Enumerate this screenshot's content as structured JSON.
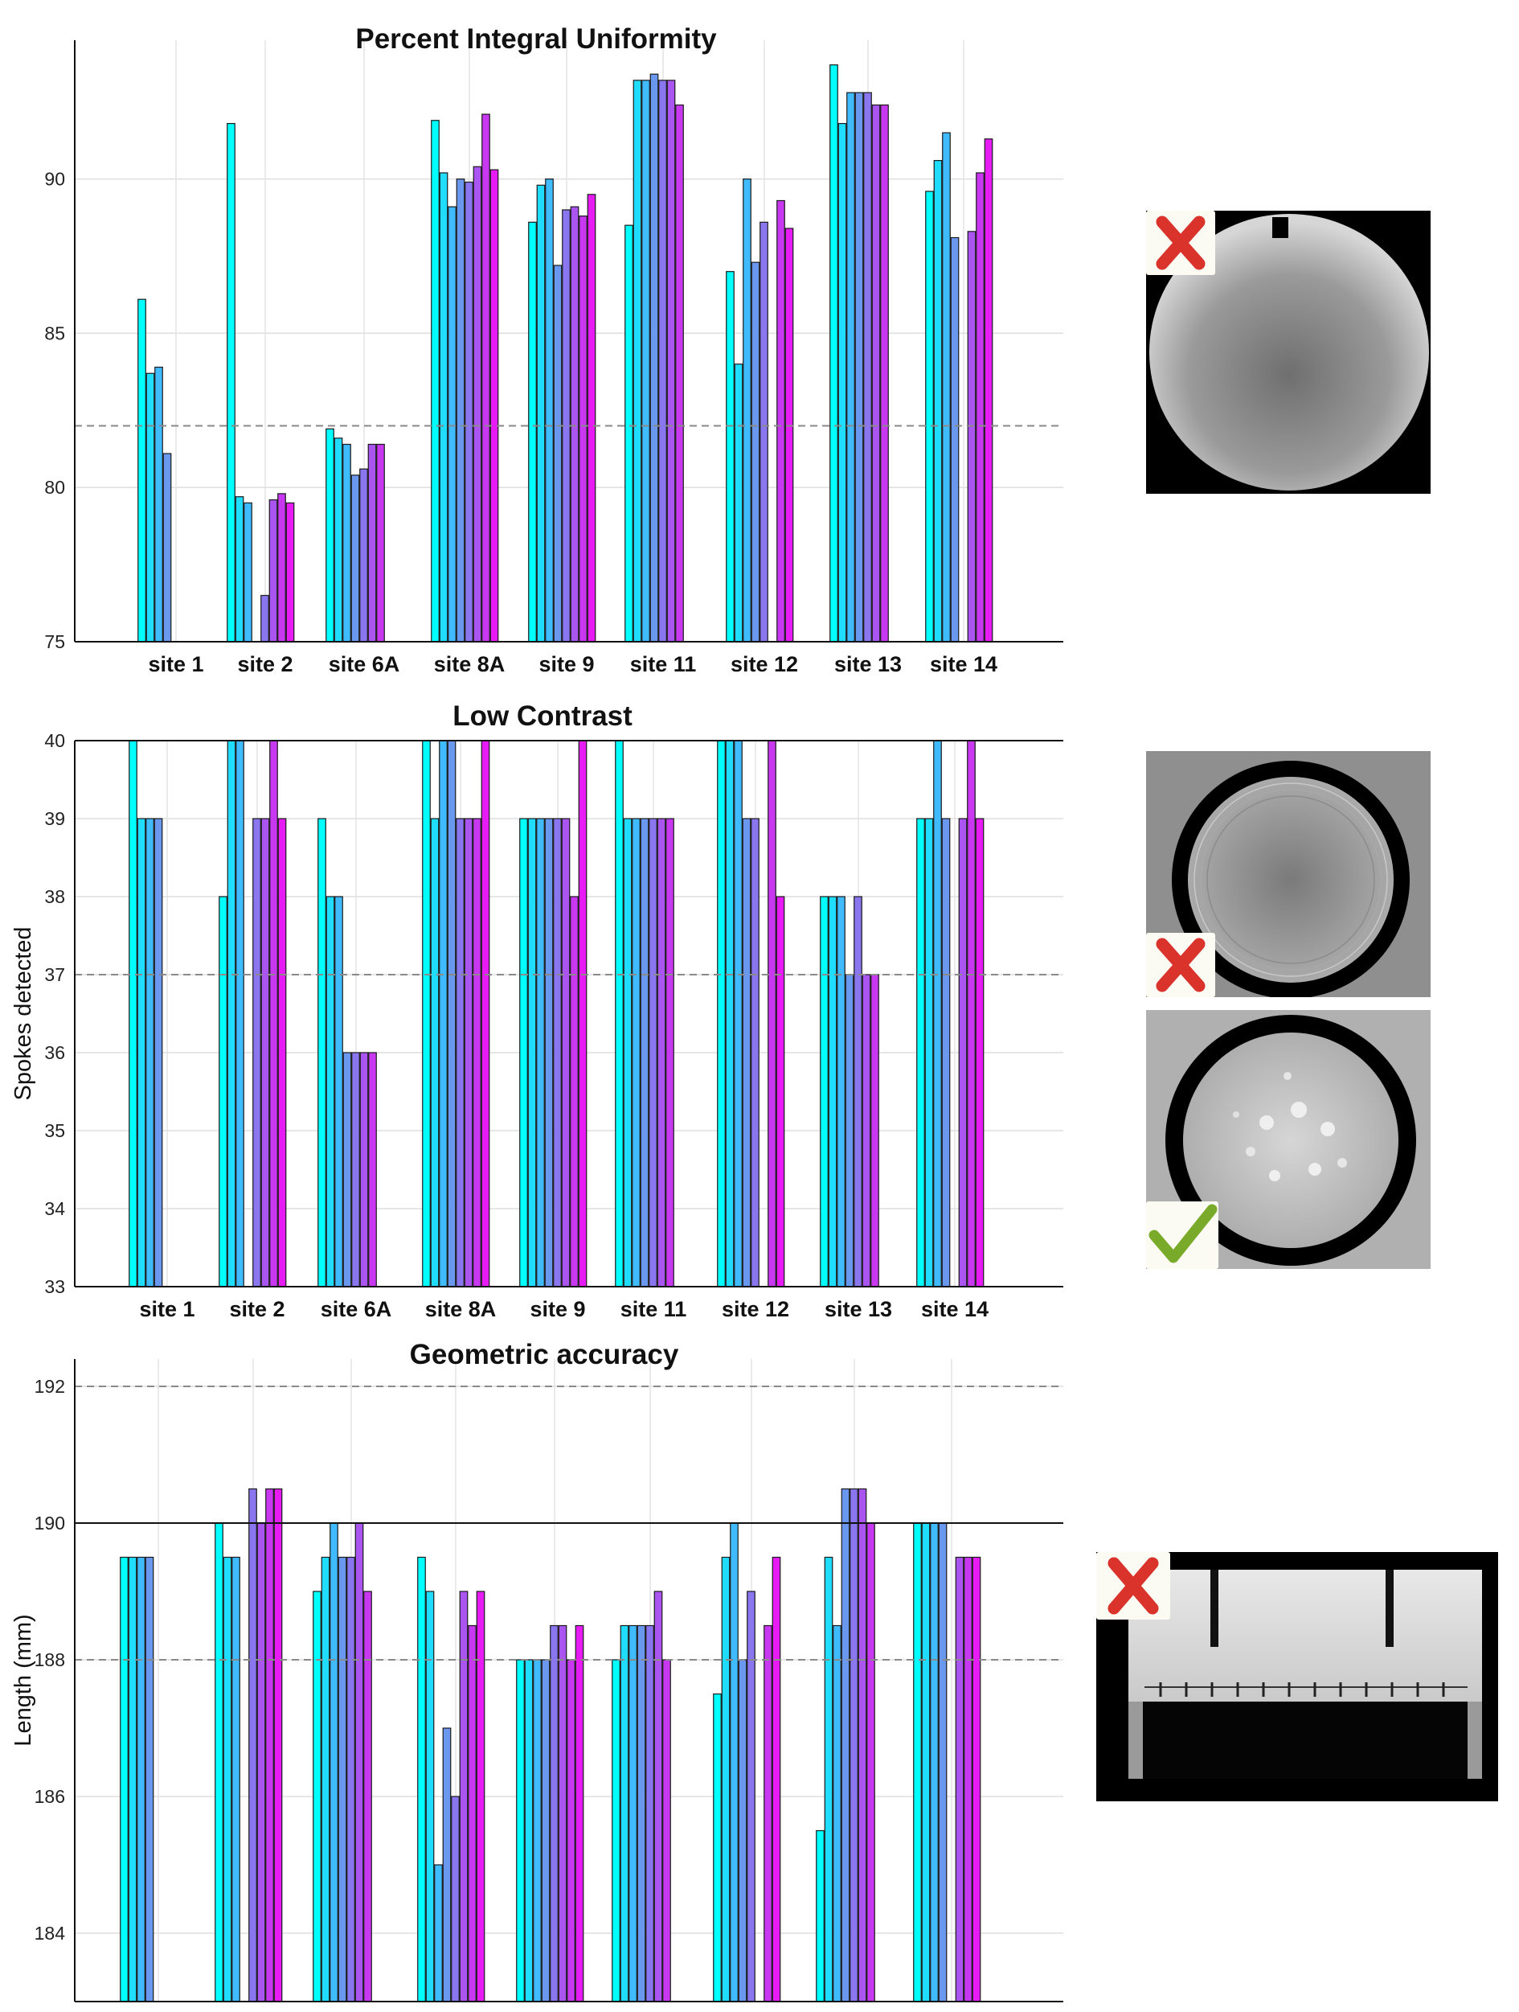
{
  "sites": [
    "site 1",
    "site 2",
    "site 6A",
    "site 8A",
    "site 9",
    "site 11",
    "site 12",
    "site 13",
    "site 14"
  ],
  "palette": [
    "#00ffff",
    "#20ddff",
    "#40bbff",
    "#6a98ef",
    "#8a76ee",
    "#aa55ef",
    "#c838f0",
    "#e71cf5",
    "#ff00ff"
  ],
  "chart_data": [
    {
      "type": "bar",
      "title": "Percent Integral Uniformity",
      "ylabel": "",
      "ylim": [
        75,
        94.5
      ],
      "yticks": [
        75,
        80,
        85,
        90
      ],
      "reference_lines": [
        {
          "value": 82,
          "style": "dashed"
        }
      ],
      "categories": [
        "site 1",
        "site 2",
        "site 6A",
        "site 8A",
        "site 9",
        "site 11",
        "site 12",
        "site 13",
        "site 14"
      ],
      "values": [
        [
          86.1,
          83.7,
          83.9,
          81.1,
          null,
          null,
          null,
          null,
          null
        ],
        [
          91.8,
          79.7,
          79.5,
          null,
          76.5,
          79.6,
          79.8,
          79.5,
          null
        ],
        [
          81.9,
          81.6,
          81.4,
          80.4,
          80.6,
          81.4,
          81.4,
          null,
          null
        ],
        [
          91.9,
          90.2,
          89.1,
          90.0,
          89.9,
          90.4,
          92.1,
          90.3,
          null
        ],
        [
          88.6,
          89.8,
          90.0,
          87.2,
          89.0,
          89.1,
          88.8,
          89.5,
          null
        ],
        [
          88.5,
          93.2,
          93.2,
          93.4,
          93.2,
          93.2,
          92.4,
          null,
          null
        ],
        [
          87.0,
          84.0,
          90.0,
          87.3,
          88.6,
          null,
          89.3,
          88.4,
          null
        ],
        [
          93.7,
          91.8,
          92.8,
          92.8,
          92.8,
          92.4,
          92.4,
          null,
          null
        ],
        [
          89.6,
          90.6,
          91.5,
          88.1,
          null,
          88.3,
          90.2,
          91.3,
          null
        ]
      ],
      "grid": "on"
    },
    {
      "type": "bar",
      "title": "Low Contrast",
      "ylabel": "Spokes detected",
      "ylim": [
        33,
        40
      ],
      "yticks": [
        33,
        34,
        35,
        36,
        37,
        38,
        39,
        40
      ],
      "reference_lines": [
        {
          "value": 37,
          "style": "dashed"
        },
        {
          "value": 40,
          "style": "solid"
        }
      ],
      "categories": [
        "site 1",
        "site 2",
        "site 6A",
        "site 8A",
        "site 9",
        "site 11",
        "site 12",
        "site 13",
        "site 14"
      ],
      "values": [
        [
          40,
          39,
          39,
          39,
          null,
          null,
          null,
          null,
          null
        ],
        [
          38,
          40,
          40,
          null,
          39,
          39,
          40,
          39,
          null
        ],
        [
          39,
          38,
          38,
          36,
          36,
          36,
          36,
          null,
          null
        ],
        [
          40,
          39,
          40,
          40,
          39,
          39,
          39,
          40,
          null
        ],
        [
          39,
          39,
          39,
          39,
          39,
          39,
          38,
          40,
          null
        ],
        [
          40,
          39,
          39,
          39,
          39,
          39,
          39,
          null,
          null
        ],
        [
          40,
          40,
          40,
          39,
          39,
          null,
          40,
          38,
          null
        ],
        [
          38,
          38,
          38,
          37,
          38,
          37,
          37,
          null,
          null
        ],
        [
          39,
          39,
          40,
          39,
          null,
          39,
          40,
          39,
          null
        ]
      ],
      "grid": "on"
    },
    {
      "type": "bar",
      "title": "Geometric accuracy",
      "ylabel": "Length (mm)",
      "ylim": [
        183,
        192.4
      ],
      "yticks": [
        184,
        186,
        188,
        190,
        192
      ],
      "reference_lines": [
        {
          "value": 192,
          "style": "dashed"
        },
        {
          "value": 190,
          "style": "solid"
        },
        {
          "value": 188,
          "style": "dashed"
        }
      ],
      "categories": [
        "site 1",
        "site 2",
        "site 6A",
        "site 8A",
        "site 9",
        "site 11",
        "site 12",
        "site 13",
        "site 14"
      ],
      "values": [
        [
          189.5,
          189.5,
          189.5,
          189.5,
          null,
          null,
          null,
          null,
          null
        ],
        [
          190.0,
          189.5,
          189.5,
          null,
          190.5,
          190.0,
          190.5,
          190.5,
          null
        ],
        [
          189.0,
          189.5,
          190.0,
          189.5,
          189.5,
          190.0,
          189.0,
          null,
          null
        ],
        [
          189.5,
          189.0,
          185.0,
          187.0,
          186.0,
          189.0,
          188.5,
          189.0,
          null
        ],
        [
          188.0,
          188.0,
          188.0,
          188.0,
          188.5,
          188.5,
          188.0,
          188.5,
          null
        ],
        [
          188.0,
          188.5,
          188.5,
          188.5,
          188.5,
          189.0,
          188.0,
          null,
          null
        ],
        [
          187.5,
          189.5,
          190.0,
          188.0,
          189.0,
          null,
          188.5,
          189.5,
          null
        ],
        [
          185.5,
          189.5,
          188.5,
          190.5,
          190.5,
          190.5,
          190.0,
          null,
          null
        ],
        [
          190.0,
          190.0,
          190.0,
          190.0,
          null,
          189.5,
          189.5,
          189.5,
          null
        ]
      ],
      "grid": "on"
    }
  ],
  "thumbnails": [
    {
      "depicts": "uniformity-phantom",
      "status": "fail-icon"
    },
    {
      "depicts": "low-contrast-phantom-ringing",
      "status": "fail-icon"
    },
    {
      "depicts": "low-contrast-phantom-good",
      "status": "pass-icon"
    },
    {
      "depicts": "geometric-phantom-grid",
      "status": "fail-icon"
    }
  ]
}
